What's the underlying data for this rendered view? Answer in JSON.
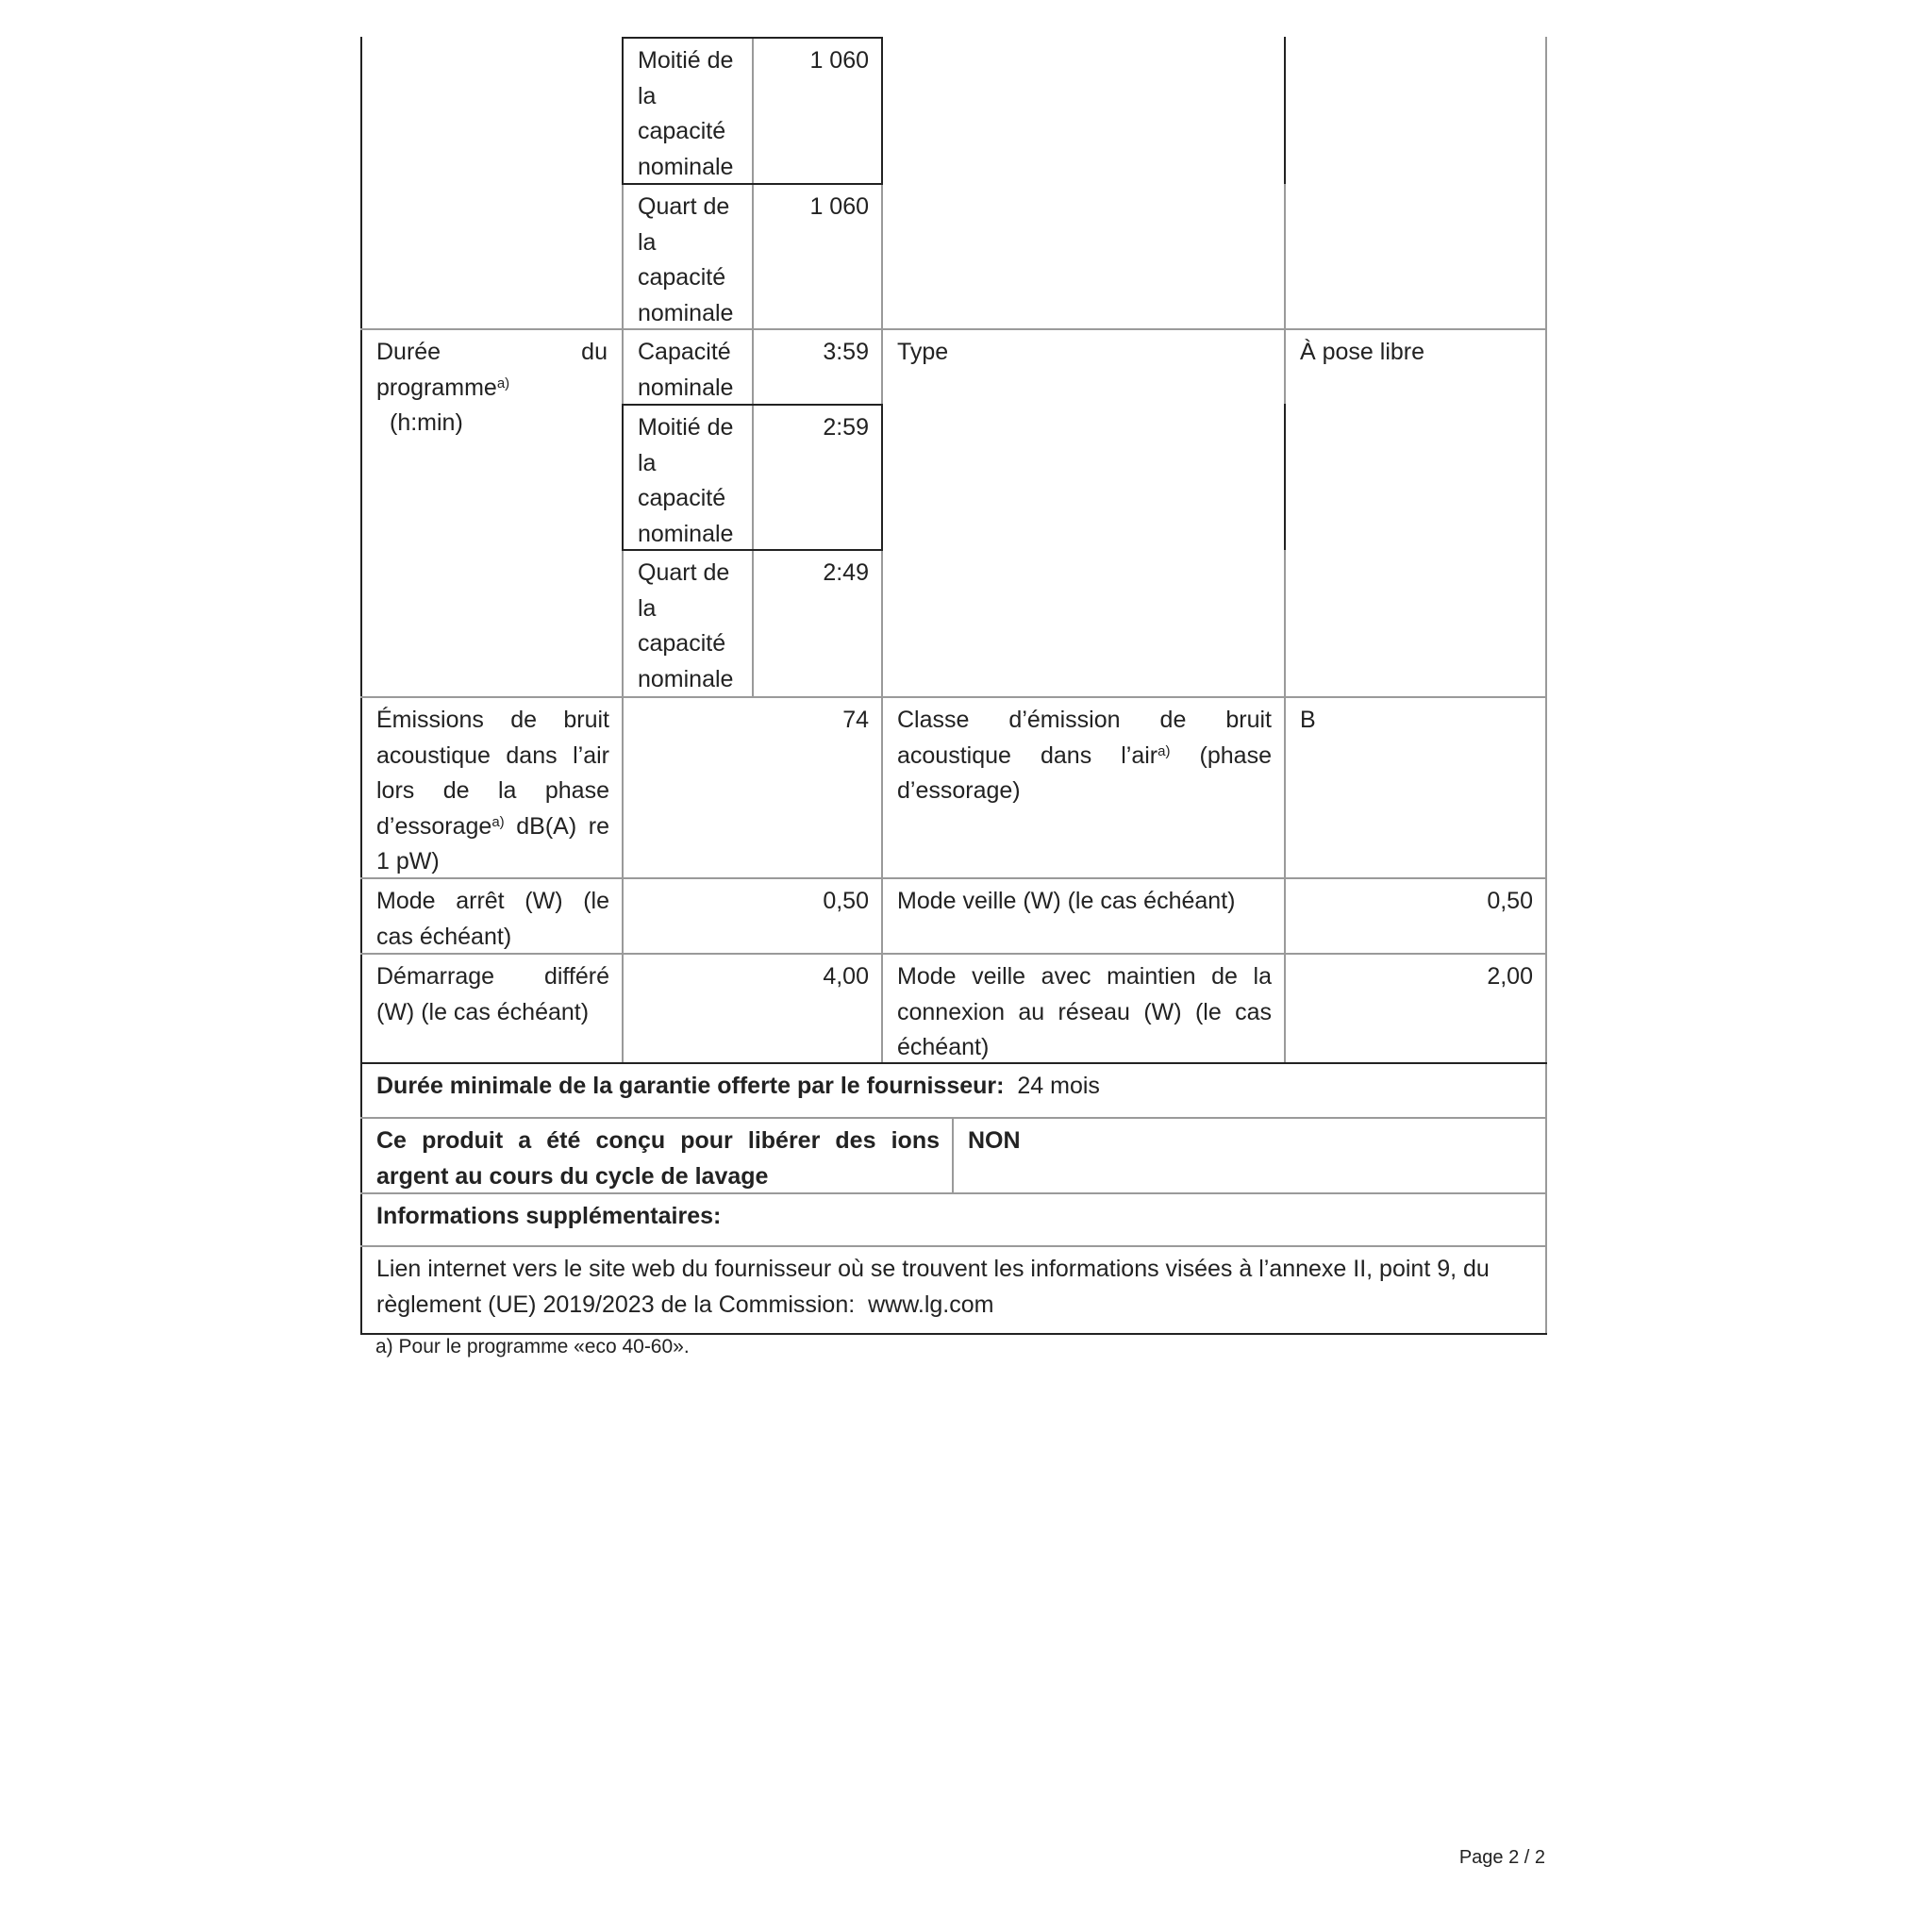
{
  "table": {
    "rows": [
      {
        "sub": "Moitié de la capacité nominale",
        "value": "1 060"
      },
      {
        "sub": "Quart de la capacité nominale",
        "value": "1 060"
      },
      {
        "label": "Durée du programme",
        "label_sup": "a)",
        "label_unit": "(h:min)",
        "sub": "Capacité nominale",
        "value": "3:59",
        "label2": "Type",
        "value2": "À pose libre"
      },
      {
        "sub": "Moitié de la capacité nominale",
        "value": "2:59"
      },
      {
        "sub": "Quart de la capacité nominale",
        "value": "2:49"
      },
      {
        "label": "Émissions de bruit acoustique dans l’air lors de la phase d’essorage",
        "label_sup": "a)",
        "label_unit": "dB(A) re 1 pW)",
        "value": "74",
        "label2": "Classe d’émission de bruit acoustique dans l’air",
        "label2_sup": "a)",
        "label2_tail": "(phase d’essorage)",
        "value2": "B"
      },
      {
        "label": "Mode arrêt (W) (le cas échéant)",
        "value": "0,50",
        "label2": "Mode veille (W) (le cas échéant)",
        "value2": "0,50"
      },
      {
        "label": "Démarrage différé (W) (le cas échéant)",
        "value": "4,00",
        "label2": "Mode veille avec maintien de la connexion au réseau (W) (le cas échéant)",
        "value2": "2,00"
      }
    ],
    "warranty_label": "Durée minimale de la garantie offerte par le fournisseur:",
    "warranty_value": "24 mois",
    "silver_label": "Ce produit a été conçu pour libérer des ions argent au cours du cycle de lavage",
    "silver_value": "NON",
    "extra_label": "Informations supplémentaires:",
    "link_text": "Lien internet vers le site web du fournisseur où se trouvent les informations visées à l’annexe II, point 9, du règlement (UE) 2019/2023 de la Commission:",
    "link_url": "www.lg.com"
  },
  "footnote": "a) Pour le programme «eco 40-60».",
  "page_label": "Page 2 / 2"
}
